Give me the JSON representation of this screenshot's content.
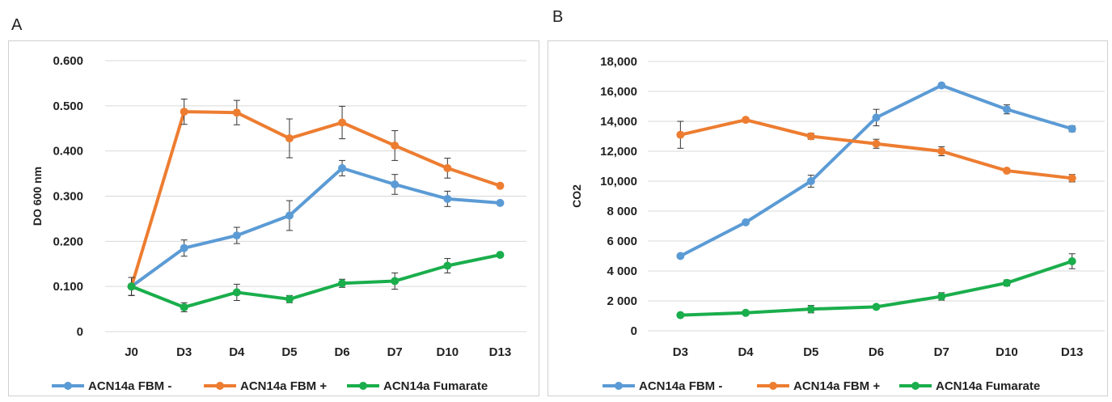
{
  "panels": {
    "a_letter": "A",
    "b_letter": "B"
  },
  "chart_data": [
    {
      "type": "line",
      "panel": "A",
      "title": "",
      "xlabel": "",
      "ylabel": "DO 600 nm",
      "categories": [
        "J0",
        "D3",
        "D4",
        "D5",
        "D6",
        "D7",
        "D10",
        "D13"
      ],
      "y_ticks": [
        "0",
        "0.100",
        "0.200",
        "0.300",
        "0.400",
        "0.500",
        "0.600"
      ],
      "y_tick_values": [
        0,
        0.1,
        0.2,
        0.3,
        0.4,
        0.5,
        0.6
      ],
      "ylim": [
        0,
        0.6
      ],
      "grid": true,
      "legend_position": "bottom",
      "series": [
        {
          "name": "ACN14a FBM -",
          "color": "#5b9bd5",
          "values": [
            0.1,
            0.185,
            0.213,
            0.257,
            0.362,
            0.326,
            0.294,
            0.285
          ],
          "errors": [
            0.02,
            0.018,
            0.018,
            0.033,
            0.017,
            0.022,
            0.017,
            0.0
          ]
        },
        {
          "name": "ACN14a FBM +",
          "color": "#ed7d31",
          "values": [
            0.1,
            0.487,
            0.485,
            0.428,
            0.463,
            0.412,
            0.362,
            0.323
          ],
          "errors": [
            0.02,
            0.028,
            0.027,
            0.043,
            0.036,
            0.033,
            0.022,
            0.0
          ]
        },
        {
          "name": "ACN14a Fumarate",
          "color": "#1aae4c",
          "values": [
            0.1,
            0.054,
            0.087,
            0.072,
            0.107,
            0.112,
            0.146,
            0.17
          ],
          "errors": [
            0.02,
            0.01,
            0.018,
            0.008,
            0.009,
            0.018,
            0.016,
            0.0
          ]
        }
      ]
    },
    {
      "type": "line",
      "panel": "B",
      "title": "",
      "xlabel": "",
      "ylabel": "CO2",
      "categories": [
        "D3",
        "D4",
        "D5",
        "D6",
        "D7",
        "D10",
        "D13"
      ],
      "y_ticks": [
        "0",
        "2 000",
        "4 000",
        "6 000",
        "8 000",
        "10,000",
        "12,000",
        "14,000",
        "16,000",
        "18,000"
      ],
      "y_tick_values": [
        0,
        2000,
        4000,
        6000,
        8000,
        10000,
        12000,
        14000,
        16000,
        18000
      ],
      "ylim": [
        0,
        18000
      ],
      "grid": true,
      "legend_position": "bottom",
      "series": [
        {
          "name": "ACN14a FBM -",
          "color": "#5b9bd5",
          "values": [
            5000,
            7250,
            10000,
            14250,
            16400,
            14800,
            13500
          ],
          "errors": [
            0,
            0,
            400,
            550,
            0,
            300,
            200
          ]
        },
        {
          "name": "ACN14a FBM +",
          "color": "#ed7d31",
          "values": [
            13100,
            14100,
            13000,
            12500,
            12000,
            10700,
            10200
          ],
          "errors": [
            900,
            0,
            200,
            300,
            300,
            0,
            250
          ]
        },
        {
          "name": "ACN14a Fumarate",
          "color": "#1aae4c",
          "values": [
            1050,
            1200,
            1450,
            1600,
            2300,
            3200,
            4650
          ],
          "errors": [
            0,
            0,
            250,
            0,
            250,
            200,
            500
          ]
        }
      ]
    }
  ]
}
